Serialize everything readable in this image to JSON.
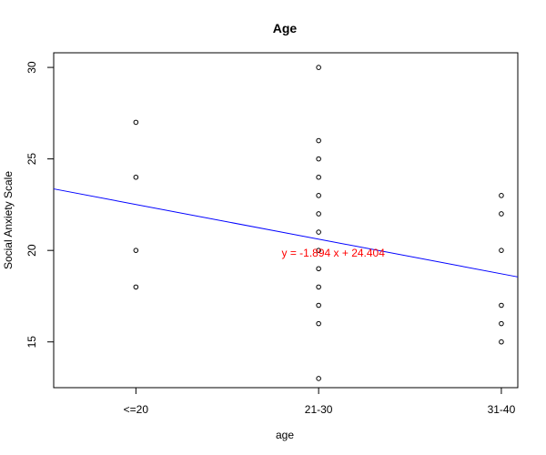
{
  "chart_data": {
    "type": "scatter",
    "title": "Age",
    "xlabel": "age",
    "ylabel": "Social Anxiety Scale",
    "categories": [
      "<=20",
      "21-30",
      "31-40"
    ],
    "ylim": [
      12.5,
      30.8
    ],
    "xlim": [
      0.55,
      3.09
    ],
    "yticks": [
      15,
      20,
      25,
      30
    ],
    "grid": false,
    "points": [
      {
        "x": 1,
        "y": 27
      },
      {
        "x": 1,
        "y": 24
      },
      {
        "x": 1,
        "y": 20
      },
      {
        "x": 1,
        "y": 18
      },
      {
        "x": 2,
        "y": 30
      },
      {
        "x": 2,
        "y": 26
      },
      {
        "x": 2,
        "y": 25
      },
      {
        "x": 2,
        "y": 24
      },
      {
        "x": 2,
        "y": 23
      },
      {
        "x": 2,
        "y": 22
      },
      {
        "x": 2,
        "y": 21
      },
      {
        "x": 2,
        "y": 20
      },
      {
        "x": 2,
        "y": 19
      },
      {
        "x": 2,
        "y": 18
      },
      {
        "x": 2,
        "y": 17
      },
      {
        "x": 2,
        "y": 16
      },
      {
        "x": 2,
        "y": 13
      },
      {
        "x": 3,
        "y": 23
      },
      {
        "x": 3,
        "y": 22
      },
      {
        "x": 3,
        "y": 20
      },
      {
        "x": 3,
        "y": 17
      },
      {
        "x": 3,
        "y": 16
      },
      {
        "x": 3,
        "y": 15
      }
    ],
    "regression": {
      "slope": -1.894,
      "intercept": 24.404,
      "color": "#0000ff"
    },
    "annotation": {
      "text": "y = -1.894 x + 24.404",
      "x": 2.08,
      "y": 19.85,
      "color": "#ff0000"
    }
  }
}
